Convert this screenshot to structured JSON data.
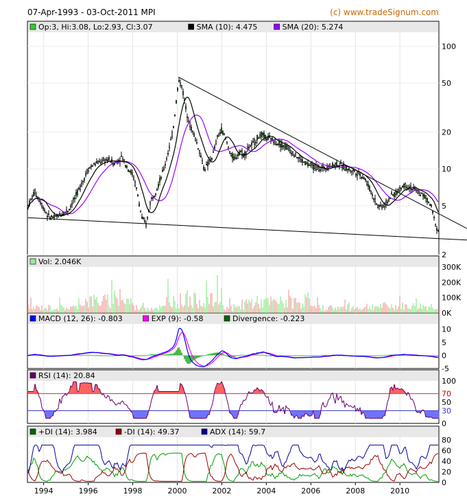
{
  "header": {
    "range": "07-Apr-1993 - 03-Oct-2011 MPI",
    "credit": "(c) www.tradeSignum.com"
  },
  "price_panel": {
    "legend": [
      {
        "label": "Op:3, Hi:3.08, Lo:2.93, Cl:3.07",
        "color": "#33cc33"
      },
      {
        "label": "SMA (10): 4.475",
        "color": "#000000"
      },
      {
        "label": "SMA (20): 5.274",
        "color": "#9900ff"
      }
    ],
    "y_ticks": [
      "100",
      "50",
      "20",
      "10",
      "5",
      "2"
    ]
  },
  "volume_panel": {
    "legend": [
      {
        "label": "Vol: 2.046K",
        "color": "#99ee99"
      }
    ],
    "y_ticks": [
      "300K",
      "200K",
      "100K",
      "0K"
    ]
  },
  "macd_panel": {
    "legend": [
      {
        "label": "MACD (12, 26): -0.803",
        "color": "#0000ff"
      },
      {
        "label": "EXP (9): -0.58",
        "color": "#ff00ff"
      },
      {
        "label": "Divergence: -0.223",
        "color": "#006600"
      }
    ],
    "y_ticks": [
      "10",
      "5",
      "0",
      "-5"
    ]
  },
  "rsi_panel": {
    "legend": [
      {
        "label": "RSI (14): 20.84",
        "color": "#660066"
      }
    ],
    "y_ticks": [
      "100",
      "70",
      "50",
      "30",
      "0"
    ]
  },
  "dmi_panel": {
    "legend": [
      {
        "label": "+DI (14): 3.984",
        "color": "#006600"
      },
      {
        "label": "-DI (14): 49.37",
        "color": "#990000"
      },
      {
        "label": "ADX (14): 59.7",
        "color": "#000099"
      }
    ],
    "y_ticks": [
      "80",
      "60",
      "40",
      "20",
      "0"
    ]
  },
  "x_axis": {
    "ticks": [
      "1994",
      "1996",
      "1998",
      "2000",
      "2002",
      "2004",
      "2006",
      "2008",
      "2010"
    ]
  },
  "chart_data": {
    "type": "line",
    "x_range": [
      1993.27,
      2011.75
    ],
    "price": {
      "scale": "log",
      "ylim": [
        2,
        130
      ],
      "close": [
        [
          1993.3,
          5.0
        ],
        [
          1993.6,
          6.5
        ],
        [
          1993.9,
          5.2
        ],
        [
          1994.2,
          4.1
        ],
        [
          1994.5,
          4.0
        ],
        [
          1994.8,
          4.3
        ],
        [
          1995.1,
          4.6
        ],
        [
          1995.4,
          5.8
        ],
        [
          1995.7,
          7.5
        ],
        [
          1996.0,
          10.0
        ],
        [
          1996.3,
          11.0
        ],
        [
          1996.6,
          11.5
        ],
        [
          1996.9,
          12.0
        ],
        [
          1997.2,
          11.0
        ],
        [
          1997.5,
          12.5
        ],
        [
          1997.8,
          10.0
        ],
        [
          1998.0,
          9.0
        ],
        [
          1998.2,
          6.5
        ],
        [
          1998.4,
          4.0
        ],
        [
          1998.6,
          3.5
        ],
        [
          1998.8,
          5.5
        ],
        [
          1999.1,
          7.0
        ],
        [
          1999.4,
          10.0
        ],
        [
          1999.6,
          14.0
        ],
        [
          1999.8,
          20.0
        ],
        [
          1999.95,
          35.0
        ],
        [
          2000.05,
          52.0
        ],
        [
          2000.2,
          48.0
        ],
        [
          2000.4,
          30.0
        ],
        [
          2000.6,
          22.0
        ],
        [
          2000.8,
          18.0
        ],
        [
          2001.0,
          14.0
        ],
        [
          2001.2,
          10.0
        ],
        [
          2001.4,
          11.0
        ],
        [
          2001.6,
          13.0
        ],
        [
          2001.8,
          18.0
        ],
        [
          2002.0,
          21.0
        ],
        [
          2002.2,
          17.0
        ],
        [
          2002.4,
          13.0
        ],
        [
          2002.6,
          12.0
        ],
        [
          2002.8,
          14.0
        ],
        [
          2003.0,
          13.0
        ],
        [
          2003.2,
          15.0
        ],
        [
          2003.4,
          16.0
        ],
        [
          2003.6,
          18.0
        ],
        [
          2003.8,
          19.0
        ],
        [
          2004.0,
          18.0
        ],
        [
          2004.3,
          17.0
        ],
        [
          2004.6,
          16.0
        ],
        [
          2004.9,
          15.0
        ],
        [
          2005.2,
          13.5
        ],
        [
          2005.5,
          12.0
        ],
        [
          2005.8,
          11.0
        ],
        [
          2006.1,
          10.5
        ],
        [
          2006.4,
          10.0
        ],
        [
          2006.8,
          10.5
        ],
        [
          2007.2,
          11.0
        ],
        [
          2007.6,
          10.0
        ],
        [
          2008.0,
          9.5
        ],
        [
          2008.4,
          8.5
        ],
        [
          2008.7,
          6.5
        ],
        [
          2009.0,
          5.0
        ],
        [
          2009.3,
          5.0
        ],
        [
          2009.6,
          6.0
        ],
        [
          2009.9,
          6.5
        ],
        [
          2010.2,
          7.5
        ],
        [
          2010.5,
          7.0
        ],
        [
          2010.8,
          6.5
        ],
        [
          2011.1,
          6.0
        ],
        [
          2011.4,
          5.0
        ],
        [
          2011.6,
          3.5
        ],
        [
          2011.75,
          3.07
        ]
      ],
      "sma10_last": 4.475,
      "sma20_last": 5.274,
      "trendlines": [
        {
          "from": [
            2000.05,
            56
          ],
          "to": [
            2011.75,
            4.3
          ]
        },
        {
          "from": [
            1993.3,
            4.0
          ],
          "to": [
            2011.75,
            2.7
          ]
        }
      ]
    },
    "volume": {
      "ylim": [
        0,
        300000
      ],
      "last": 2046
    },
    "macd": {
      "ylim": [
        -5,
        12
      ],
      "macd_last": -0.803,
      "signal_last": -0.58,
      "divergence_last": -0.223
    },
    "rsi": {
      "ylim": [
        0,
        100
      ],
      "levels": [
        70,
        30
      ],
      "last": 20.84
    },
    "dmi": {
      "ylim": [
        0,
        85
      ],
      "plus_di_last": 3.984,
      "minus_di_last": 49.37,
      "adx_last": 59.7
    }
  }
}
